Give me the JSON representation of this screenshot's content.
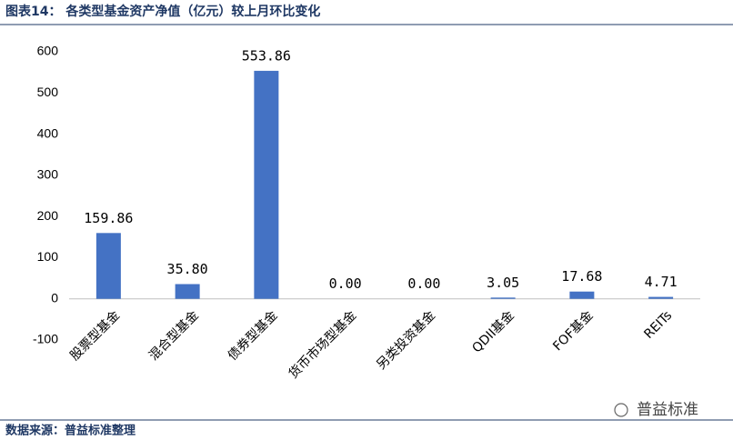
{
  "chart_data": {
    "type": "bar",
    "title": "图表14： 各类型基金资产净值（亿元）较上月环比变化",
    "categories": [
      "股票型基金",
      "混合型基金",
      "债券型基金",
      "货币市场型基金",
      "另类投资基金",
      "QDII基金",
      "FOF基金",
      "REITs"
    ],
    "values": [
      159.86,
      35.8,
      553.86,
      0,
      0,
      3.05,
      17.68,
      4.71
    ],
    "value_labels": [
      "159.86",
      "35.80",
      "553.86",
      "0.00",
      "0.00",
      "3.05",
      "17.68",
      "4.71"
    ],
    "color": "#4472c4",
    "ylim": [
      -100,
      600
    ],
    "yticks": [
      -100,
      0,
      100,
      200,
      300,
      400,
      500,
      600
    ],
    "grid": false,
    "source": "数据来源：普益标准整理",
    "watermark": "普益标准"
  }
}
